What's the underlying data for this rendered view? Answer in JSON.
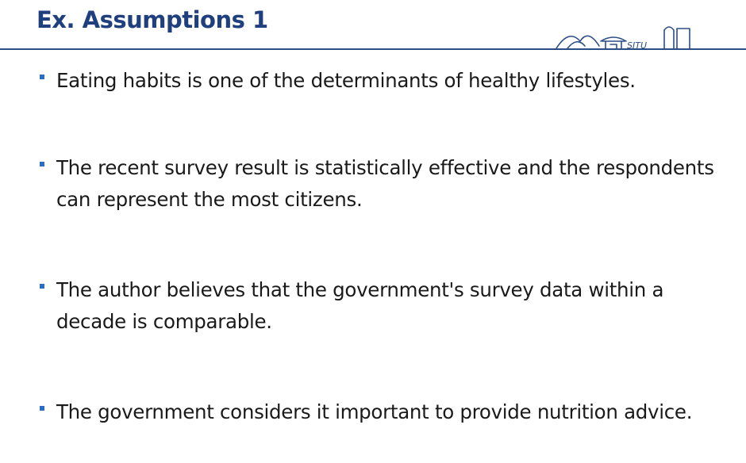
{
  "slide": {
    "title": "Ex. Assumptions 1",
    "logo_text": "SJTU",
    "bullets": [
      "Eating habits is one of the determinants of healthy lifestyles.",
      "The recent survey result is statistically effective and the respondents can represent the most citizens.",
      "The author believes that the government's survey data within a decade is comparable.",
      "The government considers it important to provide nutrition advice."
    ]
  },
  "colors": {
    "title": "#1f3f7f",
    "rule": "#2b4e86",
    "bullet_marker": "#2d6cc4",
    "body_text": "#1a1a1a",
    "logo": "#2b4e86"
  },
  "icons": {
    "logo": "university-gate-bridge-logo",
    "bullet": "square-bullet-icon"
  }
}
